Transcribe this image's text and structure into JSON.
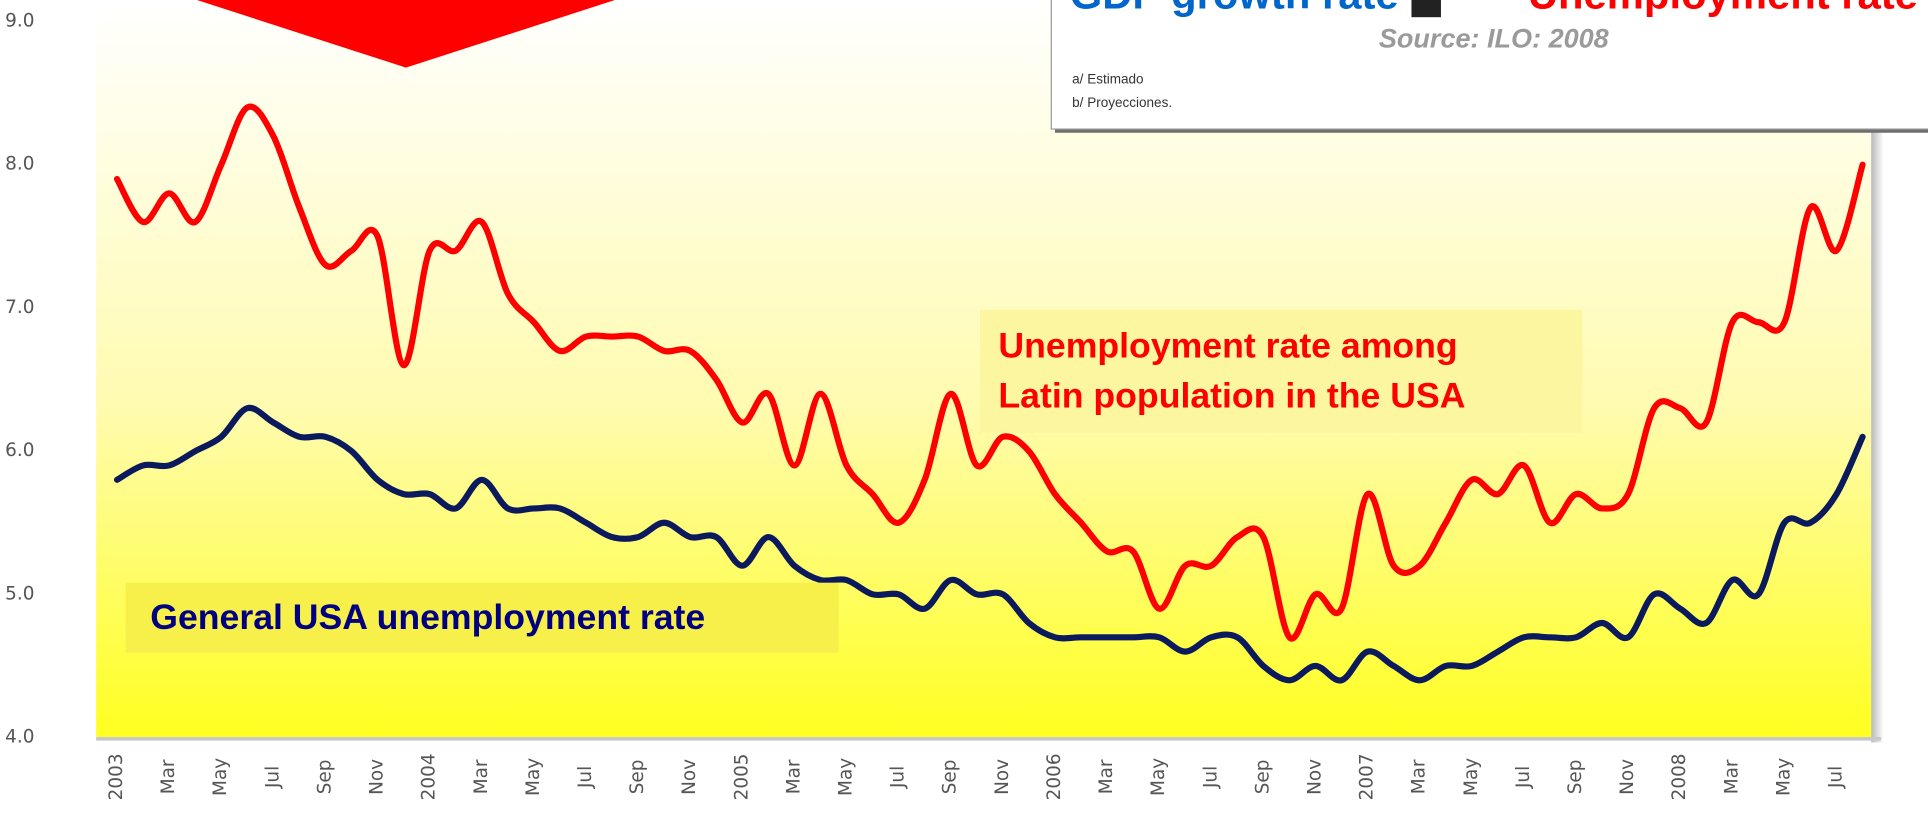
{
  "chart_data": {
    "type": "line",
    "title_parts": [
      "GDP growth rate",
      "Unemployment rate"
    ],
    "title_colors": [
      "#0066cc",
      "#ff0000"
    ],
    "subtitle": "Source: ILO: 2008",
    "notes": [
      "a/ Estimado",
      "b/ Proyecciones."
    ],
    "categories": [
      "2003",
      null,
      "Mar",
      null,
      "May",
      null,
      "Jul",
      null,
      "Sep",
      null,
      "Nov",
      null,
      "2004",
      null,
      "Mar",
      null,
      "May",
      null,
      "Jul",
      null,
      "Sep",
      null,
      "Nov",
      null,
      "2005",
      null,
      "Mar",
      null,
      "May",
      null,
      "Jul",
      null,
      "Sep",
      null,
      "Nov",
      null,
      "2006",
      null,
      "Mar",
      null,
      "May",
      null,
      "Jul",
      null,
      "Sep",
      null,
      "Nov",
      null,
      "2007",
      null,
      "Mar",
      null,
      "May",
      null,
      "Jul",
      null,
      "Sep",
      null,
      "Nov",
      null,
      "2008",
      null,
      "Mar",
      null,
      "May",
      null,
      "Jul",
      null
    ],
    "series": [
      {
        "name": [
          "Unemployment rate among",
          "Latin population in the USA"
        ],
        "color": "#ff0000",
        "values": [
          7.9,
          7.6,
          7.8,
          7.6,
          8.0,
          8.4,
          8.2,
          7.7,
          7.3,
          7.4,
          7.5,
          6.6,
          7.4,
          7.4,
          7.6,
          7.1,
          6.9,
          6.7,
          6.8,
          6.8,
          6.8,
          6.7,
          6.7,
          6.5,
          6.2,
          6.4,
          5.9,
          6.4,
          5.9,
          5.7,
          5.5,
          5.8,
          6.4,
          5.9,
          6.1,
          6.0,
          5.7,
          5.5,
          5.3,
          5.3,
          4.9,
          5.2,
          5.2,
          5.4,
          5.4,
          4.7,
          5.0,
          4.9,
          5.7,
          5.2,
          5.2,
          5.5,
          5.8,
          5.7,
          5.9,
          5.5,
          5.7,
          5.6,
          5.7,
          6.3,
          6.3,
          6.2,
          6.9,
          6.9,
          6.9,
          7.7,
          7.4,
          8.0
        ]
      },
      {
        "name": "General USA unemployment rate",
        "color": "#0a1a5c",
        "values": [
          5.8,
          5.9,
          5.9,
          6.0,
          6.1,
          6.3,
          6.2,
          6.1,
          6.1,
          6.0,
          5.8,
          5.7,
          5.7,
          5.6,
          5.8,
          5.6,
          5.6,
          5.6,
          5.5,
          5.4,
          5.4,
          5.5,
          5.4,
          5.4,
          5.2,
          5.4,
          5.2,
          5.1,
          5.1,
          5.0,
          5.0,
          4.9,
          5.1,
          5.0,
          5.0,
          4.8,
          4.7,
          4.7,
          4.7,
          4.7,
          4.7,
          4.6,
          4.7,
          4.7,
          4.5,
          4.4,
          4.5,
          4.4,
          4.6,
          4.5,
          4.4,
          4.5,
          4.5,
          4.6,
          4.7,
          4.7,
          4.7,
          4.8,
          4.7,
          5.0,
          4.9,
          4.8,
          5.1,
          5.0,
          5.5,
          5.5,
          5.7,
          6.1
        ]
      }
    ],
    "ylim": [
      4,
      9
    ],
    "yticks": [
      {
        "value": 4,
        "label": "4.0"
      },
      {
        "value": 5,
        "label": "5.0"
      },
      {
        "value": 6,
        "label": "6.0"
      },
      {
        "value": 7,
        "label": "7.0"
      },
      {
        "value": 8,
        "label": "8.0"
      },
      {
        "value": 9,
        "label": "9.0"
      }
    ],
    "grid": false
  }
}
